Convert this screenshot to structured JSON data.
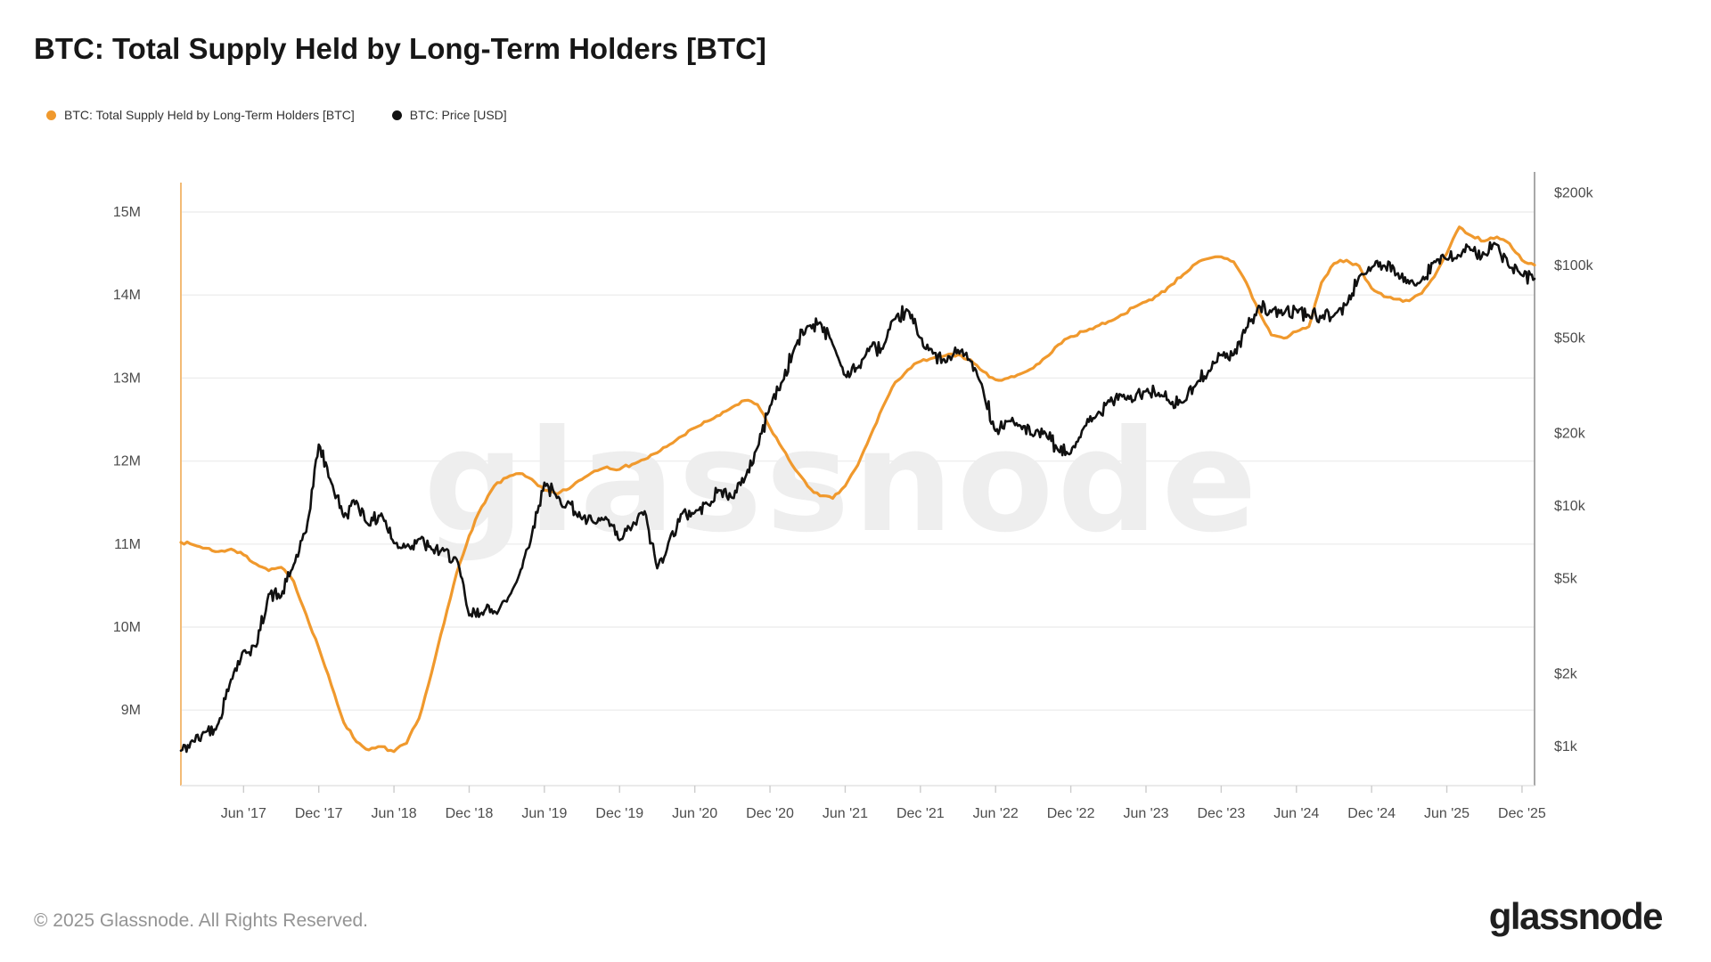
{
  "header": {
    "title": "BTC: Total Supply Held by Long-Term Holders [BTC]",
    "legend": [
      {
        "label": "BTC: Total Supply Held by Long-Term Holders [BTC]",
        "color": "#f0992d"
      },
      {
        "label": "BTC: Price [USD]",
        "color": "#111111"
      }
    ]
  },
  "watermark": "glassnode",
  "footer": {
    "copyright": "© 2025 Glassnode. All Rights Reserved.",
    "logo_text": "glassnode"
  },
  "chart_data": {
    "type": "line",
    "title": "BTC: Total Supply Held by Long-Term Holders [BTC]",
    "x_interval": "monthly",
    "x_start": "2017-01",
    "x_end": "2026-01",
    "x_tick_labels": [
      "Jun '17",
      "Dec '17",
      "Jun '18",
      "Dec '18",
      "Jun '19",
      "Dec '19",
      "Jun '20",
      "Dec '20",
      "Jun '21",
      "Dec '21",
      "Jun '22",
      "Dec '22",
      "Jun '23",
      "Dec '23",
      "Jun '24",
      "Dec '24",
      "Jun '25",
      "Dec '25"
    ],
    "x_first_tick_month_index": 5,
    "x_tick_step_months": 6,
    "grid": "horizontal",
    "legend_position": "top-left",
    "left_axis": {
      "title": "BTC: Total Supply Held by Long-Term Holders [BTC]",
      "scale": "linear",
      "unit": "BTC",
      "tick_labels": [
        "15M",
        "14M",
        "13M",
        "12M",
        "11M",
        "10M",
        "9M"
      ],
      "tick_values": [
        15000000,
        14000000,
        13000000,
        12000000,
        11000000,
        10000000,
        9000000
      ],
      "axis_line_color": "#f3bb76"
    },
    "right_axis": {
      "title": "BTC: Price [USD]",
      "scale": "log",
      "unit": "USD",
      "tick_labels": [
        "$200k",
        "$100k",
        "$50k",
        "$20k",
        "$10k",
        "$5k",
        "$2k",
        "$1k"
      ],
      "tick_values": [
        200000,
        100000,
        50000,
        20000,
        10000,
        5000,
        2000,
        1000
      ],
      "axis_line_color": "#a8a8a8"
    },
    "series": [
      {
        "name": "BTC: Total Supply Held by Long-Term Holders [BTC]",
        "axis": "left",
        "color": "#f0992d",
        "unit": "million BTC",
        "values": [
          11.02,
          10.99,
          10.95,
          10.91,
          10.94,
          10.87,
          10.76,
          10.68,
          10.72,
          10.55,
          10.15,
          9.75,
          9.3,
          8.85,
          8.62,
          8.52,
          8.56,
          8.5,
          8.6,
          8.9,
          9.45,
          10.05,
          10.65,
          11.1,
          11.45,
          11.7,
          11.8,
          11.85,
          11.78,
          11.65,
          11.6,
          11.67,
          11.78,
          11.88,
          11.93,
          11.9,
          11.96,
          12.02,
          12.1,
          12.2,
          12.3,
          12.4,
          12.48,
          12.55,
          12.65,
          12.73,
          12.68,
          12.4,
          12.15,
          11.9,
          11.7,
          11.58,
          11.55,
          11.7,
          11.95,
          12.3,
          12.65,
          12.95,
          13.1,
          13.2,
          13.24,
          13.27,
          13.28,
          13.22,
          13.08,
          12.98,
          13.0,
          13.05,
          13.12,
          13.25,
          13.4,
          13.5,
          13.56,
          13.62,
          13.68,
          13.76,
          13.85,
          13.92,
          14.0,
          14.12,
          14.25,
          14.38,
          14.44,
          14.46,
          14.4,
          14.15,
          13.8,
          13.52,
          13.48,
          13.56,
          13.62,
          14.15,
          14.38,
          14.42,
          14.35,
          14.08,
          13.98,
          13.95,
          13.93,
          14.02,
          14.22,
          14.5,
          14.82,
          14.71,
          14.65,
          14.7,
          14.62,
          14.42,
          14.36
        ]
      },
      {
        "name": "BTC: Price [USD]",
        "axis": "right",
        "color": "#111111",
        "unit": "USD",
        "values": [
          960,
          1050,
          1150,
          1250,
          1900,
          2500,
          2600,
          4300,
          4200,
          5700,
          7800,
          18000,
          12500,
          9000,
          10500,
          8300,
          9300,
          7000,
          6800,
          7300,
          6600,
          6500,
          6000,
          3500,
          3600,
          3650,
          4000,
          5200,
          7600,
          12500,
          10800,
          10300,
          8800,
          8500,
          8800,
          7200,
          8200,
          9500,
          5500,
          7300,
          9300,
          9400,
          10200,
          11600,
          10800,
          13000,
          17500,
          26000,
          33000,
          46000,
          56000,
          58000,
          47000,
          35000,
          37500,
          46000,
          45000,
          60000,
          65000,
          50000,
          43000,
          39500,
          44500,
          40000,
          30500,
          20500,
          22500,
          21500,
          19500,
          20000,
          17000,
          16600,
          21000,
          23500,
          27500,
          29000,
          27500,
          30000,
          29500,
          26500,
          27000,
          32000,
          36500,
          42500,
          42500,
          55000,
          68000,
          64000,
          63000,
          65500,
          62000,
          60500,
          62000,
          68500,
          90000,
          98000,
          100000,
          92000,
          84000,
          87000,
          104000,
          106000,
          110000,
          116000,
          111500,
          122000,
          98000,
          91000,
          88000
        ]
      }
    ]
  }
}
